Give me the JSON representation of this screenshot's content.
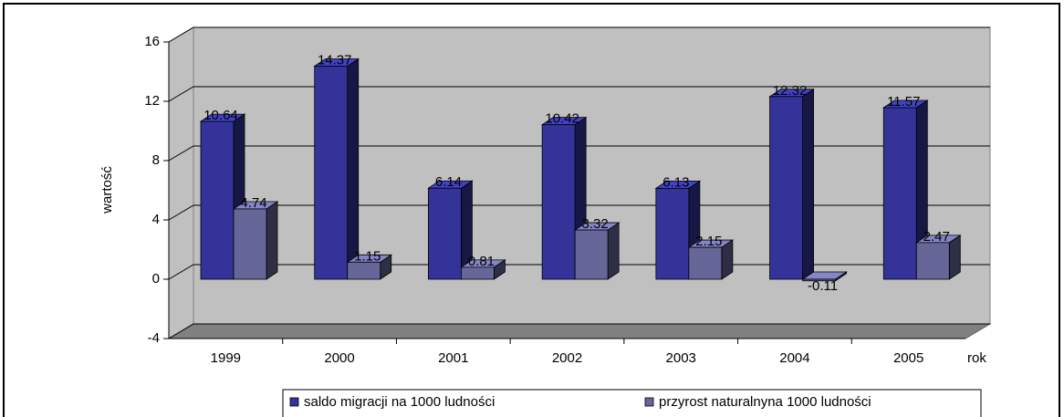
{
  "chart_data": {
    "type": "bar3d",
    "y_label": "wartość",
    "x_label": "rok",
    "categories": [
      "1999",
      "2000",
      "2001",
      "2002",
      "2003",
      "2004",
      "2005"
    ],
    "series": [
      {
        "name": "saldo migracji na 1000 ludności",
        "color": "#333399",
        "values": [
          10.64,
          14.37,
          6.14,
          10.42,
          6.13,
          12.32,
          11.57
        ]
      },
      {
        "name": "przyrost naturalnyna 1000 ludności",
        "color": "#666699",
        "values": [
          4.74,
          1.15,
          0.81,
          3.32,
          2.15,
          -0.11,
          2.47
        ]
      }
    ],
    "ylim": [
      -4,
      16
    ],
    "yticks": [
      -4,
      0,
      4,
      8,
      12,
      16
    ],
    "grid": true
  }
}
